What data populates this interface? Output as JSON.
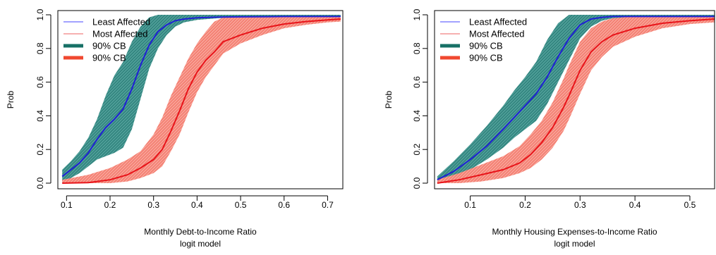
{
  "colors": {
    "least_line": "#1f1fd6",
    "most_line": "#e8141a",
    "least_band": "#1f7f7a",
    "most_band": "#f56b5e",
    "legend_least": "#6a6aff",
    "legend_most": "#f08080",
    "legend_cb_least": "#177066",
    "legend_cb_most": "#f04830"
  },
  "chart_data": [
    {
      "type": "line",
      "xlabel": "Monthly Debt-to-Income Ratio",
      "subtitle": "logit model",
      "ylabel": "Prob",
      "xlim": [
        0.08,
        0.735
      ],
      "ylim": [
        0,
        1
      ],
      "xticks": [
        "0.1",
        "0.2",
        "0.3",
        "0.4",
        "0.5",
        "0.6",
        "0.7"
      ],
      "yticks": [
        "0.0",
        "0.2",
        "0.4",
        "0.6",
        "0.8",
        "1.0"
      ],
      "legend": {
        "position": "top-left",
        "entries": [
          "Least Affected",
          "Most Affected",
          "90% CB",
          "90% CB"
        ]
      },
      "series": [
        {
          "name": "Least Affected",
          "x": [
            0.09,
            0.11,
            0.13,
            0.15,
            0.17,
            0.19,
            0.21,
            0.23,
            0.25,
            0.27,
            0.29,
            0.31,
            0.33,
            0.35,
            0.37,
            0.4,
            0.45,
            0.5,
            0.6,
            0.73
          ],
          "y": [
            0.04,
            0.08,
            0.12,
            0.18,
            0.26,
            0.33,
            0.38,
            0.44,
            0.56,
            0.7,
            0.82,
            0.9,
            0.94,
            0.965,
            0.975,
            0.982,
            0.986,
            0.988,
            0.99,
            0.99
          ],
          "lower": [
            0.0,
            0.03,
            0.06,
            0.1,
            0.14,
            0.16,
            0.18,
            0.21,
            0.32,
            0.5,
            0.68,
            0.8,
            0.88,
            0.93,
            0.955,
            0.97,
            0.98,
            0.984,
            0.988,
            0.988
          ],
          "upper": [
            0.08,
            0.13,
            0.19,
            0.27,
            0.38,
            0.52,
            0.64,
            0.72,
            0.84,
            0.93,
            0.985,
            1.0,
            1.0,
            1.0,
            1.0,
            1.0,
            1.0,
            1.0,
            1.0,
            1.0
          ]
        },
        {
          "name": "Most Affected",
          "x": [
            0.09,
            0.15,
            0.2,
            0.24,
            0.27,
            0.3,
            0.32,
            0.34,
            0.36,
            0.38,
            0.4,
            0.42,
            0.44,
            0.46,
            0.5,
            0.55,
            0.6,
            0.65,
            0.7,
            0.73
          ],
          "y": [
            0.0,
            0.003,
            0.02,
            0.05,
            0.09,
            0.14,
            0.2,
            0.31,
            0.43,
            0.56,
            0.66,
            0.73,
            0.78,
            0.84,
            0.88,
            0.92,
            0.945,
            0.96,
            0.97,
            0.975
          ],
          "lower": [
            0.0,
            0.0,
            0.0,
            0.01,
            0.03,
            0.06,
            0.1,
            0.19,
            0.29,
            0.42,
            0.54,
            0.63,
            0.7,
            0.77,
            0.83,
            0.88,
            0.92,
            0.94,
            0.955,
            0.96
          ],
          "upper": [
            0.02,
            0.05,
            0.09,
            0.14,
            0.19,
            0.29,
            0.39,
            0.52,
            0.63,
            0.74,
            0.83,
            0.9,
            0.96,
            0.985,
            0.99,
            0.99,
            0.99,
            0.99,
            0.99,
            0.99
          ]
        }
      ]
    },
    {
      "type": "line",
      "xlabel": "Monthly Housing Expenses-to-Income Ratio",
      "subtitle": "logit model",
      "ylabel": "Prob",
      "xlim": [
        0.035,
        0.545
      ],
      "ylim": [
        0,
        1
      ],
      "xticks": [
        "0.1",
        "0.2",
        "0.3",
        "0.4",
        "0.5"
      ],
      "yticks": [
        "0.0",
        "0.2",
        "0.4",
        "0.6",
        "0.8",
        "1.0"
      ],
      "legend": {
        "position": "top-left",
        "entries": [
          "Least Affected",
          "Most Affected",
          "90% CB",
          "90% CB"
        ]
      },
      "series": [
        {
          "name": "Least Affected",
          "x": [
            0.04,
            0.07,
            0.1,
            0.13,
            0.16,
            0.18,
            0.2,
            0.22,
            0.24,
            0.26,
            0.28,
            0.3,
            0.32,
            0.34,
            0.36,
            0.4,
            0.45,
            0.5,
            0.545
          ],
          "y": [
            0.02,
            0.07,
            0.14,
            0.22,
            0.32,
            0.39,
            0.46,
            0.53,
            0.63,
            0.75,
            0.86,
            0.94,
            0.975,
            0.985,
            0.99,
            0.99,
            0.99,
            0.99,
            0.99
          ],
          "lower": [
            0.0,
            0.03,
            0.08,
            0.14,
            0.21,
            0.27,
            0.32,
            0.37,
            0.47,
            0.6,
            0.73,
            0.86,
            0.93,
            0.965,
            0.98,
            0.985,
            0.985,
            0.985,
            0.985
          ],
          "upper": [
            0.04,
            0.13,
            0.23,
            0.34,
            0.46,
            0.55,
            0.63,
            0.72,
            0.85,
            0.95,
            1.0,
            1.0,
            1.0,
            1.0,
            1.0,
            1.0,
            1.0,
            1.0,
            1.0
          ]
        },
        {
          "name": "Most Affected",
          "x": [
            0.04,
            0.08,
            0.12,
            0.16,
            0.19,
            0.21,
            0.23,
            0.25,
            0.27,
            0.28,
            0.3,
            0.32,
            0.34,
            0.36,
            0.4,
            0.45,
            0.5,
            0.545
          ],
          "y": [
            0.0,
            0.02,
            0.05,
            0.08,
            0.12,
            0.17,
            0.24,
            0.33,
            0.45,
            0.52,
            0.67,
            0.78,
            0.84,
            0.88,
            0.92,
            0.95,
            0.965,
            0.975
          ],
          "lower": [
            0.0,
            0.0,
            0.01,
            0.03,
            0.06,
            0.09,
            0.14,
            0.21,
            0.31,
            0.38,
            0.53,
            0.67,
            0.75,
            0.81,
            0.87,
            0.92,
            0.945,
            0.955
          ],
          "upper": [
            0.02,
            0.06,
            0.11,
            0.16,
            0.22,
            0.29,
            0.37,
            0.48,
            0.62,
            0.7,
            0.84,
            0.92,
            0.96,
            0.98,
            0.99,
            0.99,
            0.99,
            0.99
          ]
        }
      ]
    }
  ]
}
